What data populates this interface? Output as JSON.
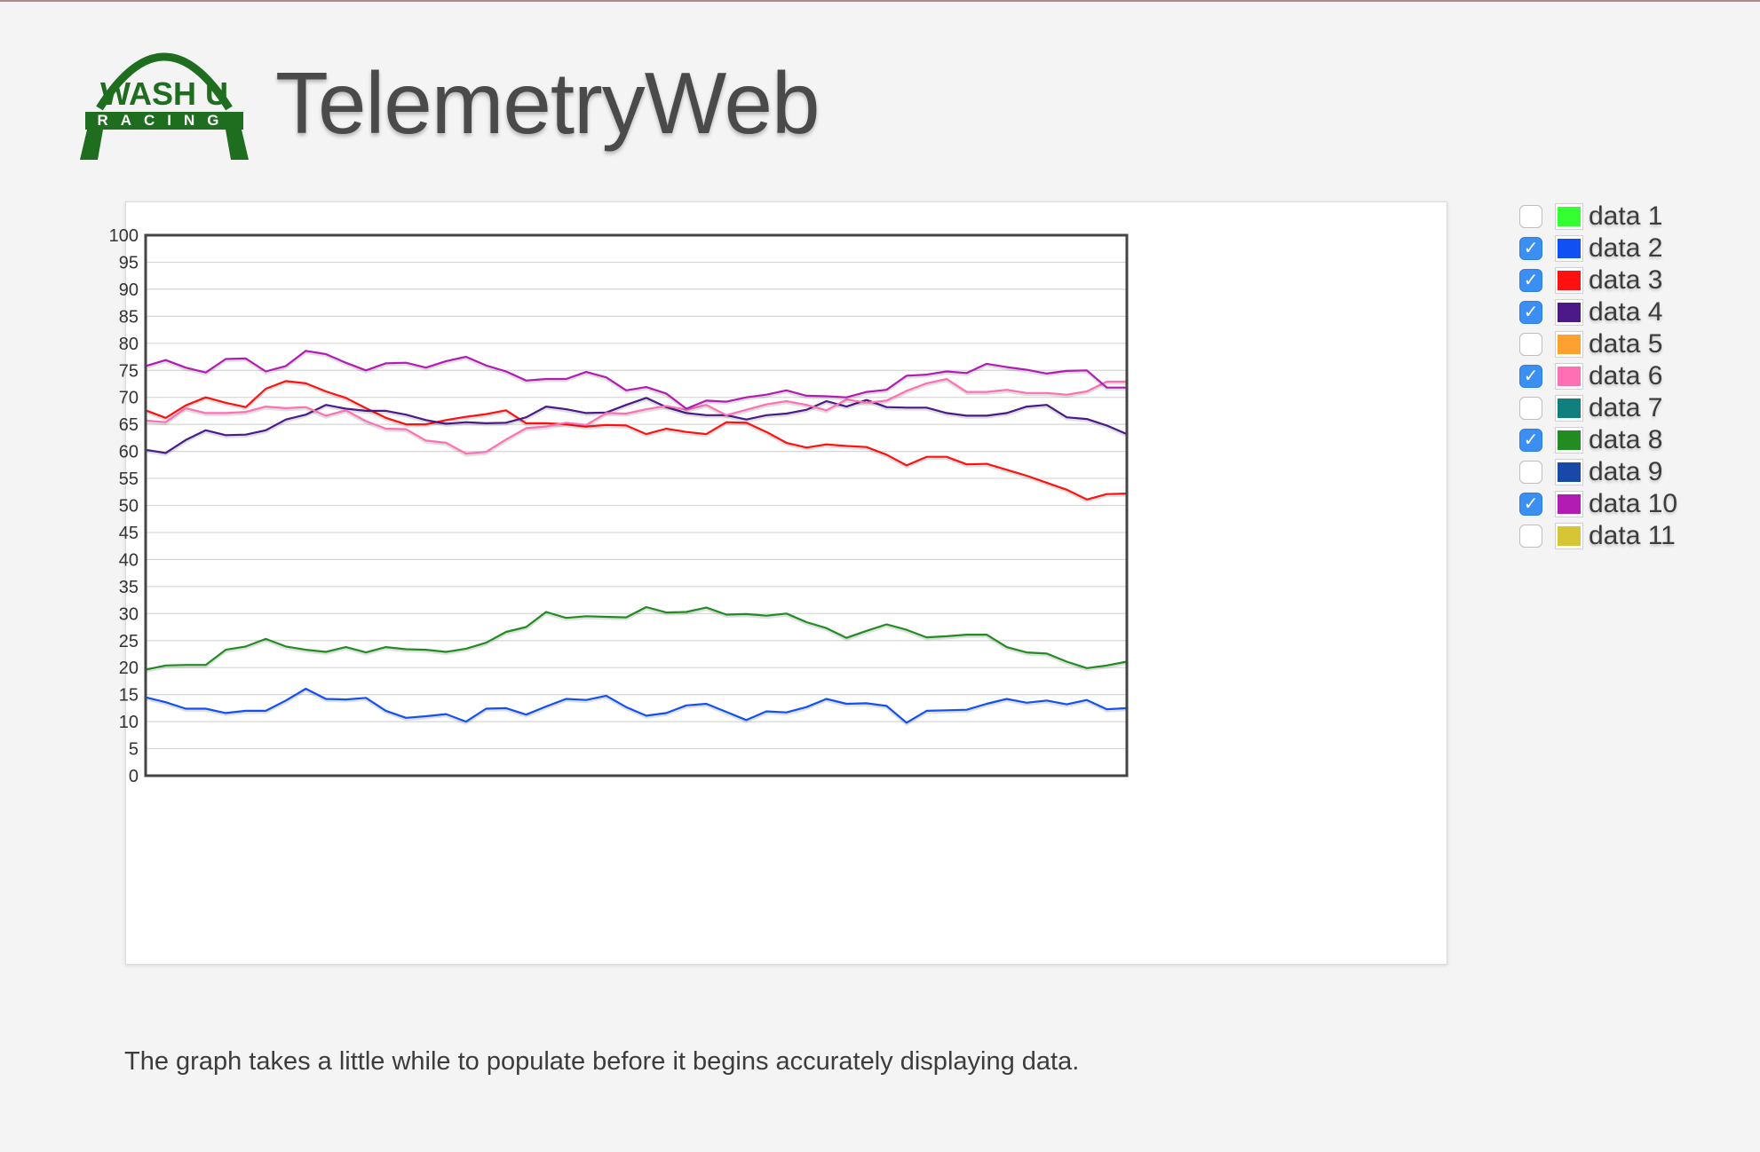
{
  "header": {
    "title": "TelemetryWeb",
    "logo": {
      "top_text": "WASH U",
      "bottom_text": "RACING",
      "color": "#1f6e1f"
    }
  },
  "legend": {
    "items": [
      {
        "label": "data 1",
        "checked": false,
        "color": "#33ff33"
      },
      {
        "label": "data 2",
        "checked": true,
        "color": "#1151f4"
      },
      {
        "label": "data 3",
        "checked": true,
        "color": "#ff1111"
      },
      {
        "label": "data 4",
        "checked": true,
        "color": "#4b1a88"
      },
      {
        "label": "data 5",
        "checked": false,
        "color": "#ffa130"
      },
      {
        "label": "data 6",
        "checked": true,
        "color": "#ff6fb4"
      },
      {
        "label": "data 7",
        "checked": false,
        "color": "#127f7f"
      },
      {
        "label": "data 8",
        "checked": true,
        "color": "#228b22"
      },
      {
        "label": "data 9",
        "checked": false,
        "color": "#1848a8"
      },
      {
        "label": "data 10",
        "checked": true,
        "color": "#b21cb2"
      },
      {
        "label": "data 11",
        "checked": false,
        "color": "#d6c535"
      }
    ]
  },
  "note": "The graph takes a little while to populate before it begins accurately displaying data.",
  "chart_data": {
    "type": "line",
    "ylim": [
      0,
      100
    ],
    "yticks": [
      "0",
      "5",
      "10",
      "15",
      "20",
      "25",
      "30",
      "35",
      "40",
      "45",
      "50",
      "55",
      "60",
      "65",
      "70",
      "75",
      "80",
      "85",
      "90",
      "95",
      "100"
    ],
    "grid": true,
    "legend_position": "right",
    "x": [
      0,
      1,
      2,
      3,
      4,
      5,
      6,
      7,
      8,
      9,
      10,
      11,
      12,
      13,
      14,
      15,
      16,
      17,
      18,
      19,
      20,
      21,
      22,
      23,
      24,
      25,
      26,
      27,
      28,
      29,
      30,
      31,
      32,
      33,
      34,
      35,
      36,
      37,
      38,
      39,
      40,
      41,
      42,
      43,
      44,
      45,
      46,
      47,
      48,
      49
    ],
    "series": [
      {
        "name": "data 2",
        "color": "#1151f4",
        "values": [
          14.5,
          13.6,
          12.4,
          12.4,
          11.6,
          12.0,
          12.0,
          13.9,
          16.1,
          14.2,
          14.1,
          14.4,
          12.0,
          10.7,
          11.0,
          11.4,
          10.0,
          12.4,
          12.5,
          11.3,
          12.8,
          14.2,
          14.0,
          14.8,
          12.7,
          11.1,
          11.6,
          13.0,
          13.3,
          11.8,
          10.3,
          11.9,
          11.7,
          12.7,
          14.2,
          13.3,
          13.4,
          12.9,
          9.8,
          12.0,
          12.1,
          12.2,
          13.3,
          14.2,
          13.5,
          13.9,
          13.2,
          14.0,
          12.3,
          12.5
        ]
      },
      {
        "name": "data 3",
        "color": "#ff1111",
        "values": [
          67.6,
          66.2,
          68.5,
          70.0,
          69.0,
          68.2,
          71.6,
          73.0,
          72.6,
          71.1,
          69.9,
          68.0,
          66.2,
          65.0,
          65.0,
          65.8,
          66.4,
          66.9,
          67.6,
          65.2,
          65.2,
          65.0,
          64.6,
          64.9,
          64.8,
          63.2,
          64.2,
          63.6,
          63.2,
          65.4,
          65.3,
          63.6,
          61.6,
          60.7,
          61.3,
          61.0,
          60.8,
          59.4,
          57.4,
          59.0,
          59.0,
          57.6,
          57.7,
          56.6,
          55.5,
          54.2,
          52.9,
          51.1,
          52.1,
          52.2
        ]
      },
      {
        "name": "data 4",
        "color": "#4b1a88",
        "values": [
          60.3,
          59.7,
          62.1,
          63.9,
          63.0,
          63.1,
          63.9,
          65.9,
          66.8,
          68.6,
          67.9,
          67.5,
          67.5,
          66.8,
          65.8,
          65.1,
          65.4,
          65.2,
          65.3,
          66.3,
          68.3,
          67.8,
          67.1,
          67.2,
          68.6,
          69.9,
          68.2,
          67.1,
          66.7,
          66.7,
          65.9,
          66.7,
          67.0,
          67.7,
          69.3,
          68.3,
          69.5,
          68.2,
          68.1,
          68.1,
          67.1,
          66.6,
          66.6,
          67.1,
          68.3,
          68.6,
          66.3,
          66.0,
          64.8,
          63.2
        ]
      },
      {
        "name": "data 6",
        "color": "#ff6fb4",
        "values": [
          65.7,
          65.4,
          68.0,
          67.1,
          67.1,
          67.3,
          68.3,
          68.0,
          68.2,
          66.6,
          67.6,
          65.6,
          64.2,
          64.1,
          62.0,
          61.6,
          59.6,
          59.9,
          62.2,
          64.3,
          64.6,
          65.3,
          64.9,
          67.1,
          67.0,
          67.8,
          68.4,
          67.7,
          68.6,
          66.7,
          67.7,
          68.7,
          69.3,
          68.6,
          67.6,
          69.6,
          69.0,
          69.4,
          71.2,
          72.6,
          73.4,
          71.0,
          71.0,
          71.4,
          70.8,
          70.8,
          70.5,
          71.1,
          72.9,
          72.9
        ]
      },
      {
        "name": "data 8",
        "color": "#228b22",
        "values": [
          19.6,
          20.4,
          20.5,
          20.5,
          23.3,
          23.9,
          25.3,
          23.9,
          23.3,
          22.9,
          23.8,
          22.8,
          23.8,
          23.4,
          23.3,
          22.9,
          23.5,
          24.6,
          26.6,
          27.5,
          30.3,
          29.2,
          29.5,
          29.4,
          29.3,
          31.2,
          30.2,
          30.3,
          31.1,
          29.8,
          29.9,
          29.6,
          30.0,
          28.4,
          27.3,
          25.5,
          26.8,
          28.0,
          27.0,
          25.6,
          25.8,
          26.1,
          26.1,
          23.8,
          22.8,
          22.6,
          21.1,
          19.9,
          20.4,
          21.1
        ]
      },
      {
        "name": "data 10",
        "color": "#b21cb2",
        "values": [
          75.8,
          76.9,
          75.5,
          74.6,
          77.1,
          77.2,
          74.8,
          75.8,
          78.6,
          78.0,
          76.4,
          75.0,
          76.3,
          76.4,
          75.5,
          76.7,
          77.5,
          75.9,
          74.8,
          73.1,
          73.4,
          73.4,
          74.7,
          73.7,
          71.3,
          71.9,
          70.7,
          67.9,
          69.4,
          69.2,
          70.0,
          70.5,
          71.3,
          70.3,
          70.2,
          70.0,
          71.0,
          71.4,
          74.0,
          74.2,
          74.8,
          74.5,
          76.2,
          75.6,
          75.1,
          74.4,
          74.9,
          75.0,
          71.8,
          71.8
        ]
      }
    ]
  }
}
